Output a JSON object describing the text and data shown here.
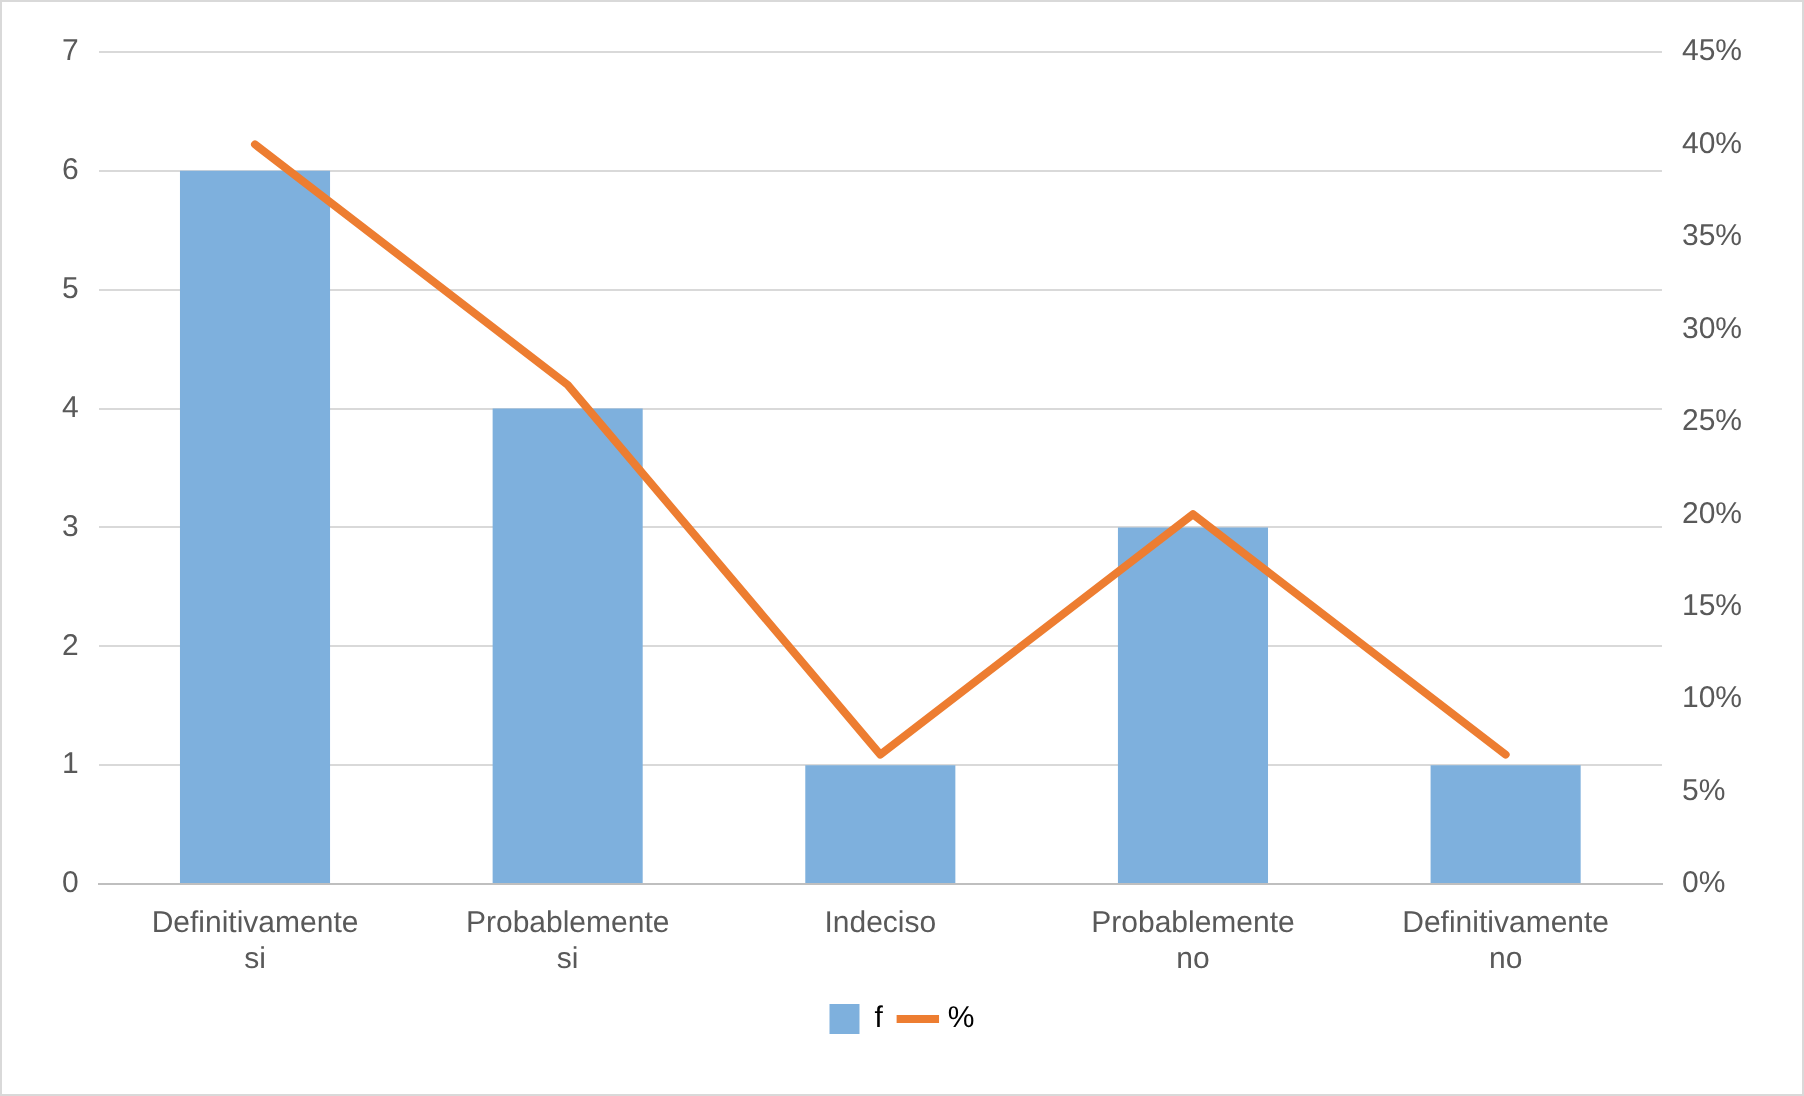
{
  "chart_data": {
    "type": "bar",
    "categories": [
      "Definitivamente si",
      "Probablemente si",
      "Indeciso",
      "Probablemente no",
      "Definitivamente no"
    ],
    "series": [
      {
        "name": "f",
        "color": "#7eb0dd",
        "values": [
          6,
          4,
          1,
          3,
          1
        ]
      },
      {
        "name": "%",
        "type": "line",
        "axis": "y2",
        "color": "#ed7d31",
        "values": [
          40,
          27,
          7,
          20,
          7
        ]
      }
    ],
    "ylim": [
      0,
      7
    ],
    "yticks": [
      0,
      1,
      2,
      3,
      4,
      5,
      6,
      7
    ],
    "y2lim": [
      0,
      45
    ],
    "y2ticks": [
      {
        "value": 0,
        "label": "0%"
      },
      {
        "value": 5,
        "label": "5%"
      },
      {
        "value": 10,
        "label": "10%"
      },
      {
        "value": 15,
        "label": "15%"
      },
      {
        "value": 20,
        "label": "20%"
      },
      {
        "value": 25,
        "label": "25%"
      },
      {
        "value": 30,
        "label": "30%"
      },
      {
        "value": 35,
        "label": "35%"
      },
      {
        "value": 40,
        "label": "40%"
      },
      {
        "value": 45,
        "label": "45%"
      }
    ],
    "grid": "y",
    "legend": "bottom",
    "marker": "none",
    "line_style": "solid"
  }
}
